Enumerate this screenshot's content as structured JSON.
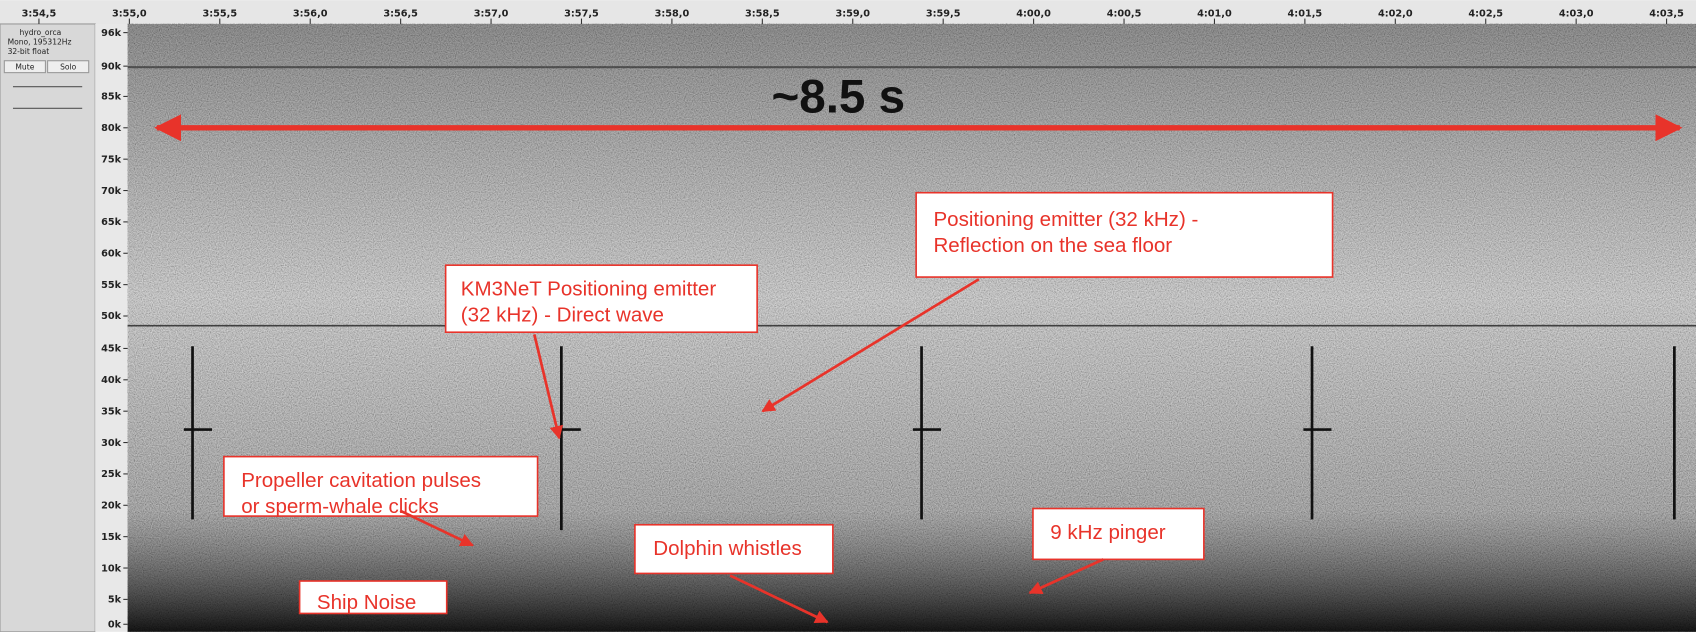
{
  "timeline": {
    "labels": [
      "3:54,5",
      "3:55,0",
      "3:55,5",
      "3:56,0",
      "3:56,5",
      "3:57,0",
      "3:57,5",
      "3:58,0",
      "3:58,5",
      "3:59,0",
      "3:59,5",
      "4:00,0",
      "4:00,5",
      "4:01,0",
      "4:01,5",
      "4:02,0",
      "4:02,5",
      "4:03,0",
      "4:03,5"
    ]
  },
  "track": {
    "name": "hydro_orca",
    "info": "Mono, 195312Hz",
    "format": "32-bit float",
    "buttons": [
      "Mute",
      "Solo"
    ]
  },
  "frequency_axis": {
    "labels": [
      "96k",
      "90k",
      "85k",
      "80k",
      "75k",
      "70k",
      "65k",
      "60k",
      "55k",
      "50k",
      "45k",
      "40k",
      "35k",
      "30k",
      "25k",
      "20k",
      "15k",
      "10k",
      "5k",
      "0k"
    ]
  },
  "duration_label": "~8.5 s",
  "annotations": [
    {
      "lines": [
        "Positioning emitter  (32 kHz) -",
        "Reflection on the sea floor"
      ]
    },
    {
      "lines": [
        "KM3NeT Positioning emitter",
        "(32 kHz) - Direct wave"
      ]
    },
    {
      "lines": [
        "Propeller cavitation pulses",
        "or sperm-whale clicks"
      ]
    },
    {
      "lines": [
        "Dolphin whistles"
      ]
    },
    {
      "lines": [
        "9 kHz pinger"
      ]
    },
    {
      "lines": [
        "Ship Noise"
      ]
    }
  ]
}
